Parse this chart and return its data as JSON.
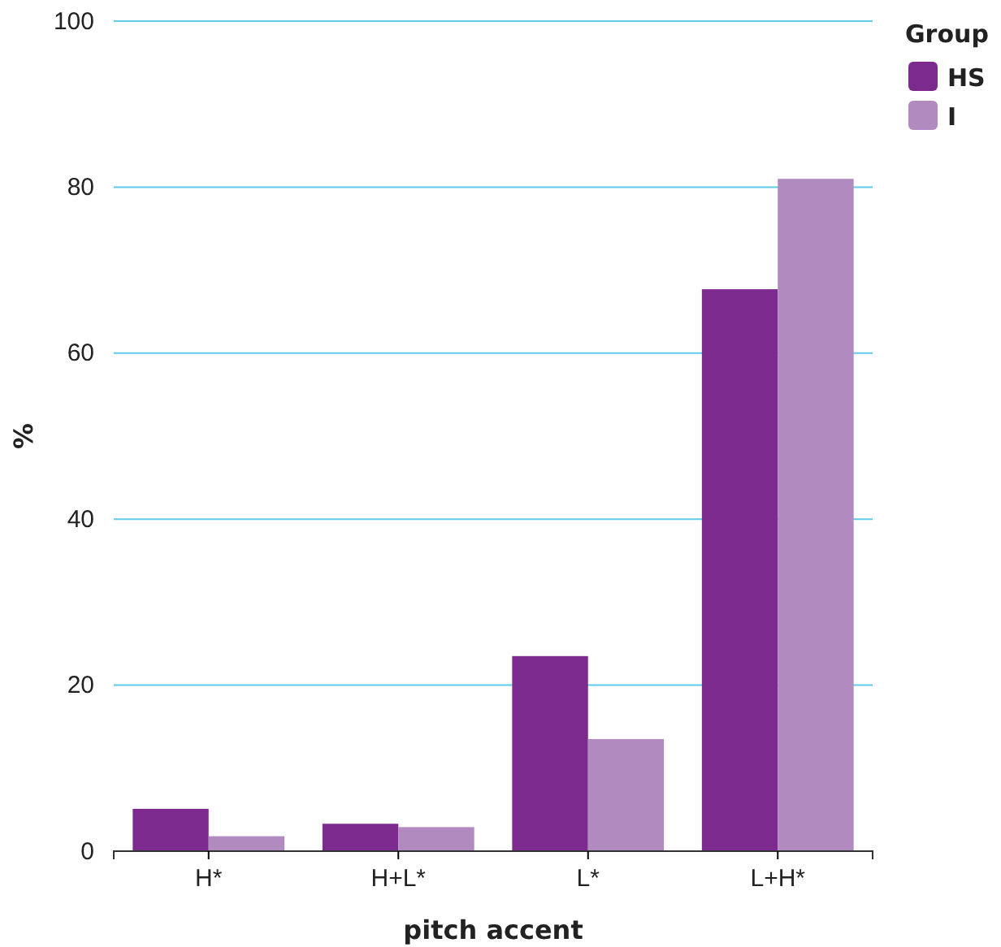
{
  "chart_data": {
    "type": "bar",
    "xlabel": "pitch accent",
    "ylabel": "%",
    "legend_title": "Group",
    "categories": [
      "H*",
      "H+L*",
      "L*",
      "L+H*"
    ],
    "series": [
      {
        "name": "HS",
        "color": "#7d2a8e",
        "values": [
          5.1,
          3.3,
          23.5,
          67.7
        ]
      },
      {
        "name": "I",
        "color": "#b18bc0",
        "values": [
          1.8,
          2.9,
          13.5,
          81.0
        ]
      }
    ],
    "ylim": [
      0,
      100
    ],
    "yticks": [
      0,
      20,
      40,
      60,
      80,
      100
    ],
    "grid": "y",
    "legend": "top right"
  }
}
